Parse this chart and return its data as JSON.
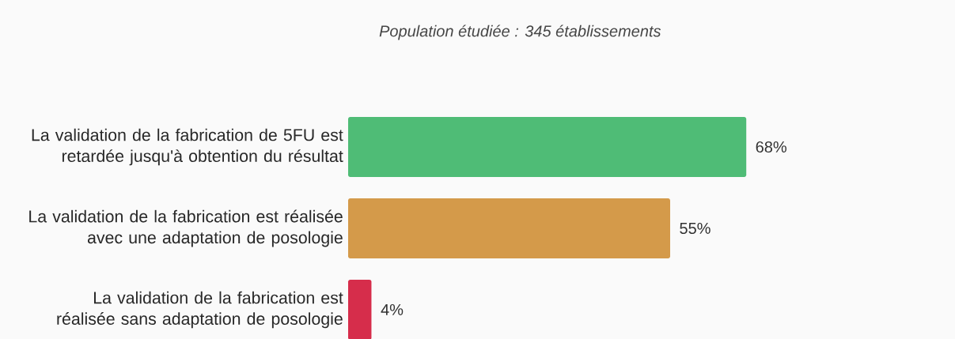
{
  "chart_data": {
    "type": "bar",
    "orientation": "horizontal",
    "title": "Population étudiée : 345 établissements",
    "categories": [
      "La validation de la fabrication de 5FU est retardée jusqu'à obtention du résultat",
      "La validation de la fabrication est réalisée avec une adaptation de posologie",
      "La validation de la fabrication est réalisée sans adaptation de posologie"
    ],
    "values": [
      68,
      55,
      4
    ],
    "value_labels": [
      "68%",
      "55%",
      "4%"
    ],
    "colors": [
      "#4fbc76",
      "#d49a4a",
      "#d62d4b"
    ],
    "tick_labels": "y"
  }
}
